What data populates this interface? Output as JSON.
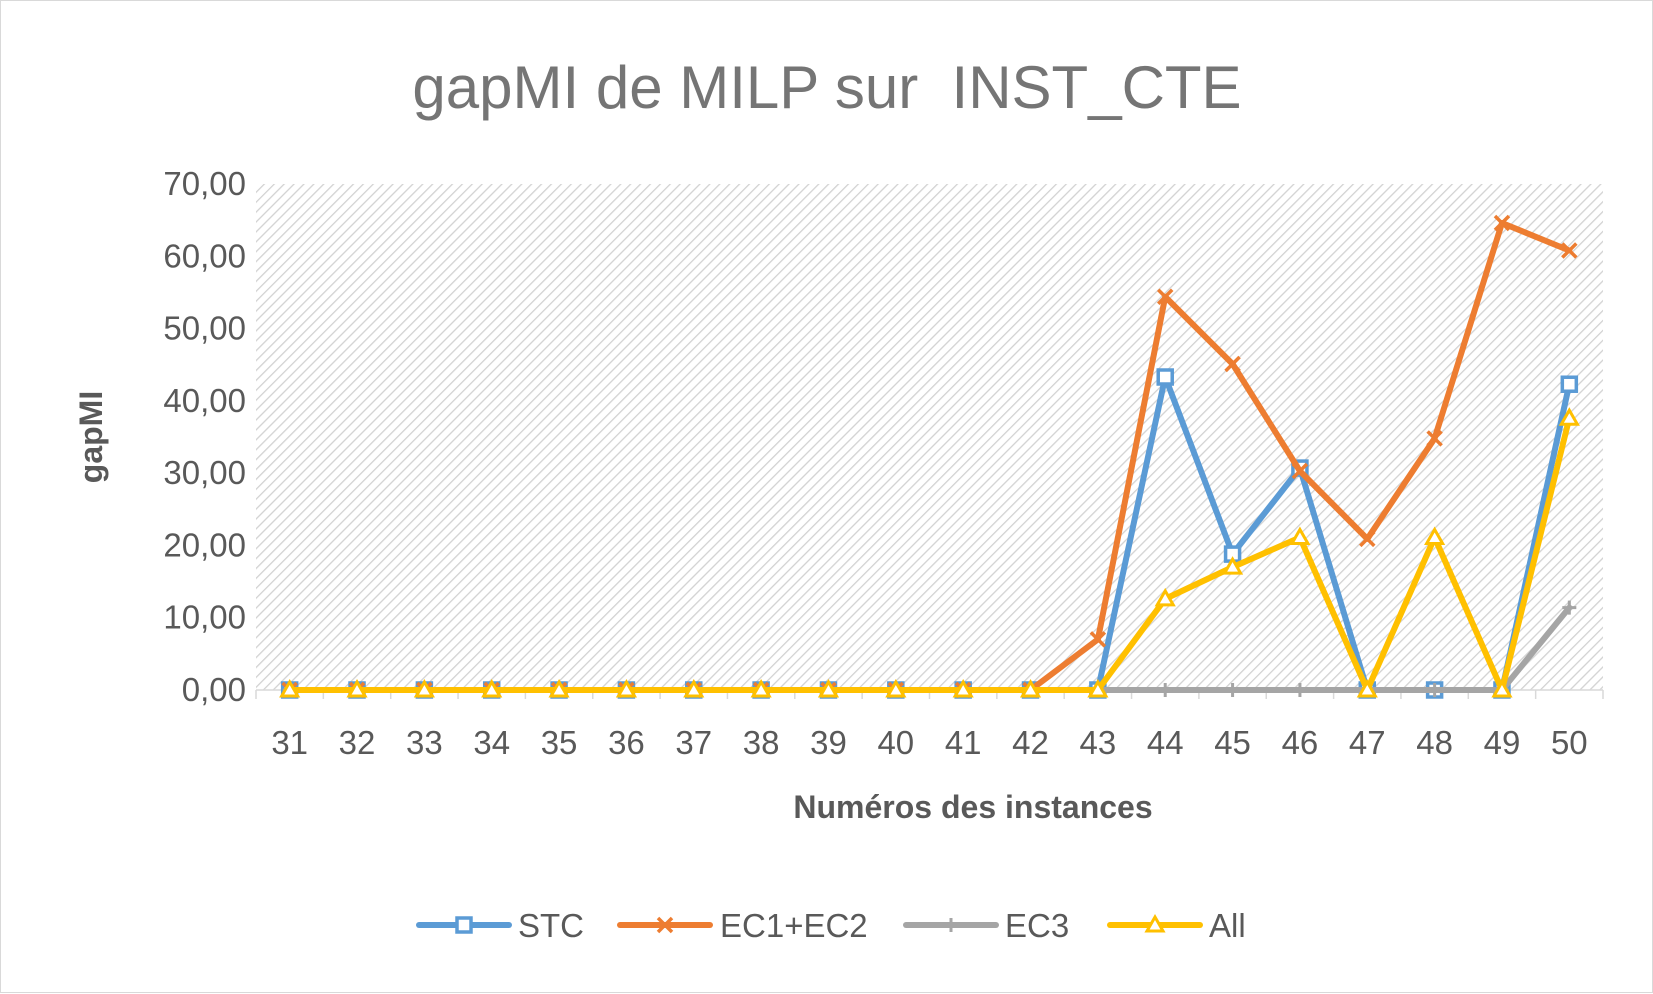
{
  "chart_data": {
    "type": "line",
    "title": "gapMI de MILP sur  INST_CTE",
    "xlabel": "Numéros des instances",
    "ylabel": "gapMI",
    "categories": [
      "31",
      "32",
      "33",
      "34",
      "35",
      "36",
      "37",
      "38",
      "39",
      "40",
      "41",
      "42",
      "43",
      "44",
      "45",
      "46",
      "47",
      "48",
      "49",
      "50"
    ],
    "ylim": [
      0,
      70
    ],
    "yticks": [
      "0,00",
      "10,00",
      "20,00",
      "30,00",
      "40,00",
      "50,00",
      "60,00",
      "70,00"
    ],
    "grid": false,
    "legend_position": "bottom",
    "series": [
      {
        "name": "STC",
        "color": "#5b9bd5",
        "marker": "square",
        "values": [
          0,
          0,
          0,
          0,
          0,
          0,
          0,
          0,
          0,
          0,
          0,
          0,
          0,
          43.3,
          18.8,
          30.7,
          0,
          0,
          0,
          42.3
        ]
      },
      {
        "name": "EC1+EC2",
        "color": "#ed7d31",
        "marker": "x",
        "values": [
          0,
          0,
          0,
          0,
          0,
          0,
          0,
          0,
          0,
          0,
          0,
          0,
          7.0,
          54.4,
          45.1,
          30.3,
          20.9,
          34.8,
          64.6,
          60.8
        ]
      },
      {
        "name": "EC3",
        "color": "#a5a5a5",
        "marker": "plus",
        "values": [
          0,
          0,
          0,
          0,
          0,
          0,
          0,
          0,
          0,
          0,
          0,
          0,
          0,
          0,
          0,
          0,
          0,
          0,
          0,
          11.4
        ]
      },
      {
        "name": "All",
        "color": "#ffc000",
        "marker": "triangle",
        "values": [
          0,
          0,
          0,
          0,
          0,
          0,
          0,
          0,
          0,
          0,
          0,
          0,
          0,
          12.6,
          17.0,
          21.1,
          0,
          21.1,
          0,
          37.6
        ]
      }
    ]
  }
}
